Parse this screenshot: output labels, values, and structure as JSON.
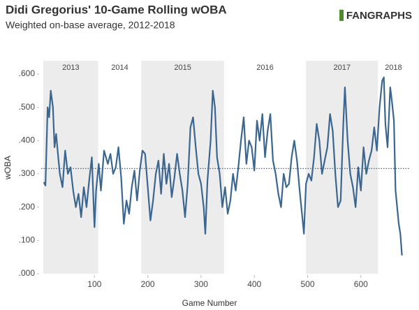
{
  "chart_data": {
    "type": "line",
    "title": "Didi Gregorius' 10-Game Rolling wOBA",
    "subtitle": "Weighted on-base average, 2012-2018",
    "logo": "FANGRAPHS",
    "x_label": "Game Number",
    "y_label": "wOBA",
    "xlim": [
      0,
      690
    ],
    "ylim": [
      0,
      0.64
    ],
    "xticks": [
      100,
      200,
      300,
      400,
      500,
      600
    ],
    "yticks": [
      {
        "value": 0,
        "label": ".000"
      },
      {
        "value": 0.1,
        "label": ".100"
      },
      {
        "value": 0.2,
        "label": ".200"
      },
      {
        "value": 0.3,
        "label": ".300"
      },
      {
        "value": 0.4,
        "label": ".400"
      },
      {
        "value": 0.5,
        "label": ".500"
      },
      {
        "value": 0.6,
        "label": ".600"
      }
    ],
    "reference_line": 0.316,
    "seasons": [
      {
        "label": "2013",
        "start": 4,
        "end": 107,
        "shaded": true
      },
      {
        "label": "2014",
        "start": 107,
        "end": 188,
        "shaded": false
      },
      {
        "label": "2015",
        "start": 188,
        "end": 343,
        "shaded": true
      },
      {
        "label": "2016",
        "start": 343,
        "end": 497,
        "shaded": false
      },
      {
        "label": "2017",
        "start": 497,
        "end": 632,
        "shaded": true
      },
      {
        "label": "2018",
        "start": 632,
        "end": 690,
        "shaded": false
      }
    ],
    "series": [
      {
        "name": "wOBA",
        "color": "#3a6690",
        "x": [
          5,
          8,
          12,
          15,
          18,
          22,
          25,
          28,
          32,
          35,
          40,
          45,
          50,
          55,
          60,
          65,
          70,
          75,
          80,
          85,
          90,
          95,
          100,
          103,
          108,
          112,
          118,
          125,
          130,
          135,
          140,
          145,
          150,
          155,
          160,
          165,
          170,
          175,
          180,
          185,
          190,
          195,
          200,
          205,
          210,
          215,
          220,
          225,
          230,
          235,
          240,
          245,
          250,
          255,
          260,
          265,
          270,
          275,
          280,
          285,
          290,
          295,
          300,
          305,
          308,
          312,
          318,
          322,
          326,
          330,
          335,
          340,
          345,
          350,
          355,
          360,
          365,
          370,
          375,
          380,
          385,
          390,
          395,
          400,
          405,
          410,
          415,
          420,
          425,
          430,
          435,
          440,
          445,
          450,
          455,
          460,
          465,
          470,
          475,
          480,
          485,
          490,
          493,
          497,
          502,
          507,
          512,
          517,
          522,
          527,
          532,
          537,
          542,
          547,
          552,
          557,
          562,
          567,
          570,
          575,
          580,
          585,
          590,
          595,
          600,
          605,
          610,
          615,
          620,
          625,
          630,
          635,
          640,
          643,
          646,
          650,
          655,
          658,
          662,
          665,
          668,
          671,
          674,
          677
        ],
        "values": [
          0.275,
          0.265,
          0.5,
          0.47,
          0.55,
          0.5,
          0.38,
          0.42,
          0.35,
          0.3,
          0.26,
          0.37,
          0.3,
          0.32,
          0.25,
          0.2,
          0.24,
          0.17,
          0.26,
          0.2,
          0.28,
          0.35,
          0.14,
          0.25,
          0.33,
          0.25,
          0.37,
          0.33,
          0.36,
          0.3,
          0.32,
          0.38,
          0.29,
          0.15,
          0.22,
          0.18,
          0.26,
          0.31,
          0.22,
          0.31,
          0.37,
          0.36,
          0.26,
          0.16,
          0.22,
          0.3,
          0.34,
          0.24,
          0.36,
          0.27,
          0.33,
          0.23,
          0.29,
          0.36,
          0.3,
          0.25,
          0.17,
          0.27,
          0.44,
          0.47,
          0.38,
          0.3,
          0.27,
          0.2,
          0.12,
          0.28,
          0.4,
          0.55,
          0.5,
          0.35,
          0.3,
          0.2,
          0.26,
          0.18,
          0.22,
          0.3,
          0.25,
          0.32,
          0.4,
          0.47,
          0.33,
          0.4,
          0.38,
          0.31,
          0.46,
          0.4,
          0.48,
          0.35,
          0.43,
          0.48,
          0.34,
          0.3,
          0.24,
          0.2,
          0.3,
          0.26,
          0.27,
          0.35,
          0.4,
          0.34,
          0.25,
          0.17,
          0.12,
          0.27,
          0.3,
          0.28,
          0.35,
          0.45,
          0.4,
          0.3,
          0.34,
          0.38,
          0.48,
          0.43,
          0.3,
          0.2,
          0.22,
          0.45,
          0.56,
          0.4,
          0.3,
          0.26,
          0.2,
          0.32,
          0.25,
          0.38,
          0.3,
          0.34,
          0.37,
          0.44,
          0.37,
          0.5,
          0.58,
          0.59,
          0.45,
          0.38,
          0.56,
          0.52,
          0.46,
          0.25,
          0.2,
          0.15,
          0.12,
          0.055
        ]
      }
    ]
  }
}
